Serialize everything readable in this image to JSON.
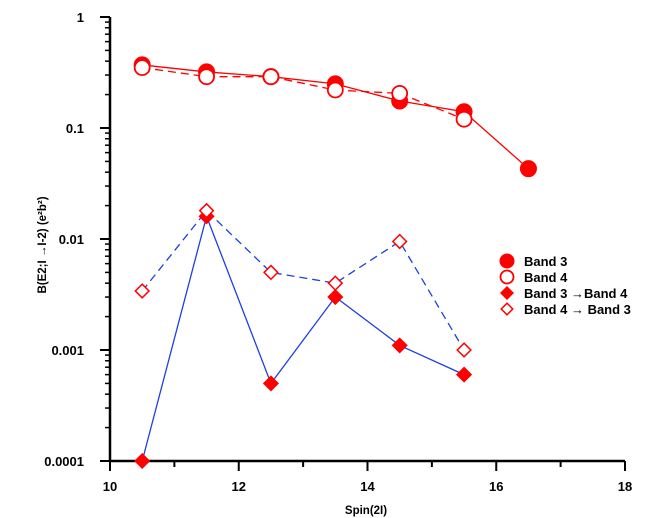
{
  "chart_data": {
    "type": "line",
    "xlabel": "Spin(2I)",
    "ylabel": "B(E2;I →I-2) (e²b²)",
    "xlim": [
      10,
      18
    ],
    "ylim": [
      0.0001,
      1
    ],
    "yscale": "log",
    "x_ticks": [
      10,
      12,
      14,
      16,
      18
    ],
    "x_tick_labels": [
      "10",
      "12",
      "14",
      "16",
      "18"
    ],
    "y_ticks": [
      0.0001,
      0.001,
      0.01,
      0.1,
      1
    ],
    "y_tick_labels": [
      "0.0001",
      "0.001",
      "0.01",
      "0.1",
      "1"
    ],
    "legend_position": "right-middle",
    "series": [
      {
        "name": "Band 3",
        "marker": "filled-circle",
        "line": "solid",
        "color": "#ff0000",
        "x": [
          10.5,
          11.5,
          12.5,
          13.5,
          14.5,
          15.5,
          16.5
        ],
        "y": [
          0.37,
          0.32,
          0.29,
          0.25,
          0.175,
          0.14,
          0.043
        ]
      },
      {
        "name": "Band 4",
        "marker": "open-circle",
        "line": "dashed",
        "color": "#ff0000",
        "x": [
          10.5,
          11.5,
          12.5,
          13.5,
          14.5,
          15.5
        ],
        "y": [
          0.35,
          0.29,
          0.29,
          0.22,
          0.205,
          0.12
        ]
      },
      {
        "name": "Band 3 →Band 4",
        "marker": "filled-diamond",
        "line": "solid",
        "color": "#ff0000",
        "line_color": "#1f3fe0",
        "x": [
          10.5,
          11.5,
          12.5,
          13.5,
          14.5,
          15.5
        ],
        "y": [
          0.0001,
          0.016,
          0.0005,
          0.003,
          0.0011,
          0.0006
        ]
      },
      {
        "name": "Band 4 → Band 3",
        "marker": "open-diamond",
        "line": "dashed",
        "color": "#ff0000",
        "line_color": "#1f3fe0",
        "x": [
          10.5,
          11.5,
          12.5,
          13.5,
          14.5,
          15.5
        ],
        "y": [
          0.0034,
          0.018,
          0.005,
          0.004,
          0.0095,
          0.001
        ]
      }
    ]
  }
}
